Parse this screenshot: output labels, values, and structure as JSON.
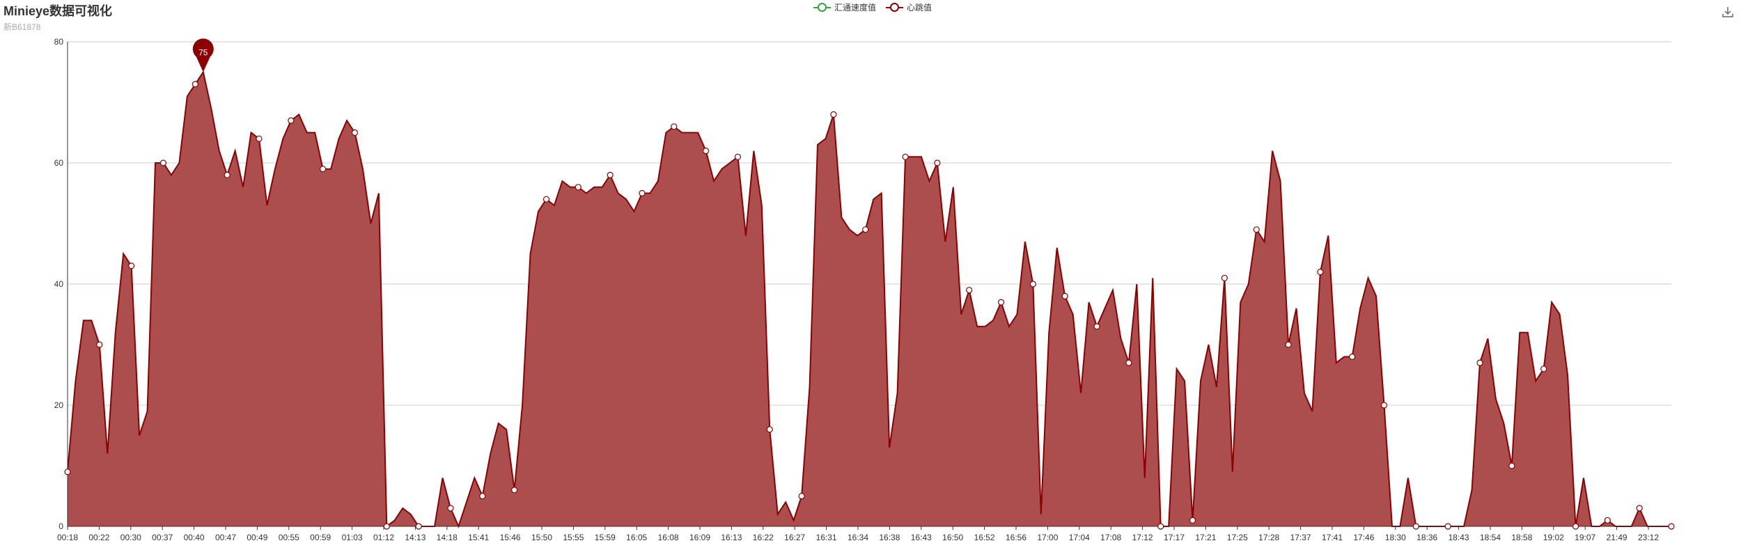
{
  "title": "Minieye数据可视化",
  "subtitle": "新B61878",
  "legend": [
    {
      "name": "汇通速度值",
      "color": "#2fa83a"
    },
    {
      "name": "心跳值",
      "color": "#8b0000"
    }
  ],
  "toolbar": {
    "download_icon": "download-icon"
  },
  "colors": {
    "series_line": "#8b0000",
    "series_area": "#ad4e4e",
    "grid": "#cccccc",
    "axis": "#333333",
    "marker": "#8b0000"
  },
  "chart_data": {
    "type": "area",
    "x_labels": [
      "00:18",
      "00:22",
      "00:30",
      "00:37",
      "00:40",
      "00:47",
      "00:49",
      "00:55",
      "00:59",
      "01:03",
      "01:12",
      "14:13",
      "14:18",
      "15:41",
      "15:46",
      "15:50",
      "15:55",
      "15:59",
      "16:05",
      "16:08",
      "16:09",
      "16:13",
      "16:22",
      "16:27",
      "16:31",
      "16:34",
      "16:38",
      "16:43",
      "16:50",
      "16:52",
      "16:56",
      "17:00",
      "17:04",
      "17:08",
      "17:12",
      "17:17",
      "17:21",
      "17:25",
      "17:28",
      "17:37",
      "17:41",
      "17:46",
      "18:30",
      "18:36",
      "18:43",
      "18:54",
      "18:58",
      "19:02",
      "19:07",
      "21:49",
      "23:12"
    ],
    "ylim": [
      0,
      80
    ],
    "y_ticks": [
      0,
      20,
      40,
      60,
      80
    ],
    "series": [
      {
        "name": "心跳值",
        "values": [
          9,
          24,
          34,
          34,
          30,
          12,
          32,
          45,
          43,
          15,
          19,
          60,
          60,
          58,
          60,
          71,
          73,
          75,
          69,
          62,
          58,
          62,
          56,
          65,
          64,
          53,
          59,
          64,
          67,
          68,
          65,
          65,
          59,
          59,
          64,
          67,
          65,
          59,
          50,
          55,
          0,
          1,
          3,
          2,
          0,
          0,
          0,
          8,
          3,
          0,
          4,
          8,
          5,
          12,
          17,
          16,
          6,
          20,
          45,
          52,
          54,
          53,
          57,
          56,
          56,
          55,
          56,
          56,
          58,
          55,
          54,
          52,
          55,
          55,
          57,
          65,
          66,
          65,
          65,
          65,
          62,
          57,
          59,
          60,
          61,
          48,
          62,
          53,
          16,
          2,
          4,
          1,
          5,
          23,
          63,
          64,
          68,
          51,
          49,
          48,
          49,
          54,
          55,
          13,
          22,
          61,
          61,
          61,
          57,
          60,
          47,
          56,
          35,
          39,
          33,
          33,
          34,
          37,
          33,
          35,
          47,
          40,
          2,
          32,
          46,
          38,
          35,
          22,
          37,
          33,
          36,
          39,
          31,
          27,
          40,
          8,
          41,
          0,
          0,
          26,
          24,
          1,
          24,
          30,
          23,
          41,
          9,
          37,
          40,
          49,
          47,
          62,
          57,
          30,
          36,
          22,
          19,
          42,
          48,
          27,
          28,
          28,
          36,
          41,
          38,
          20,
          0,
          0,
          8,
          0,
          0,
          0,
          0,
          0,
          0,
          0,
          6,
          27,
          31,
          21,
          17,
          10,
          32,
          32,
          24,
          26,
          37,
          35,
          25,
          0,
          8,
          0,
          0,
          1,
          0,
          0,
          0,
          3,
          0,
          0,
          0,
          0
        ]
      }
    ],
    "max_label": "75"
  }
}
